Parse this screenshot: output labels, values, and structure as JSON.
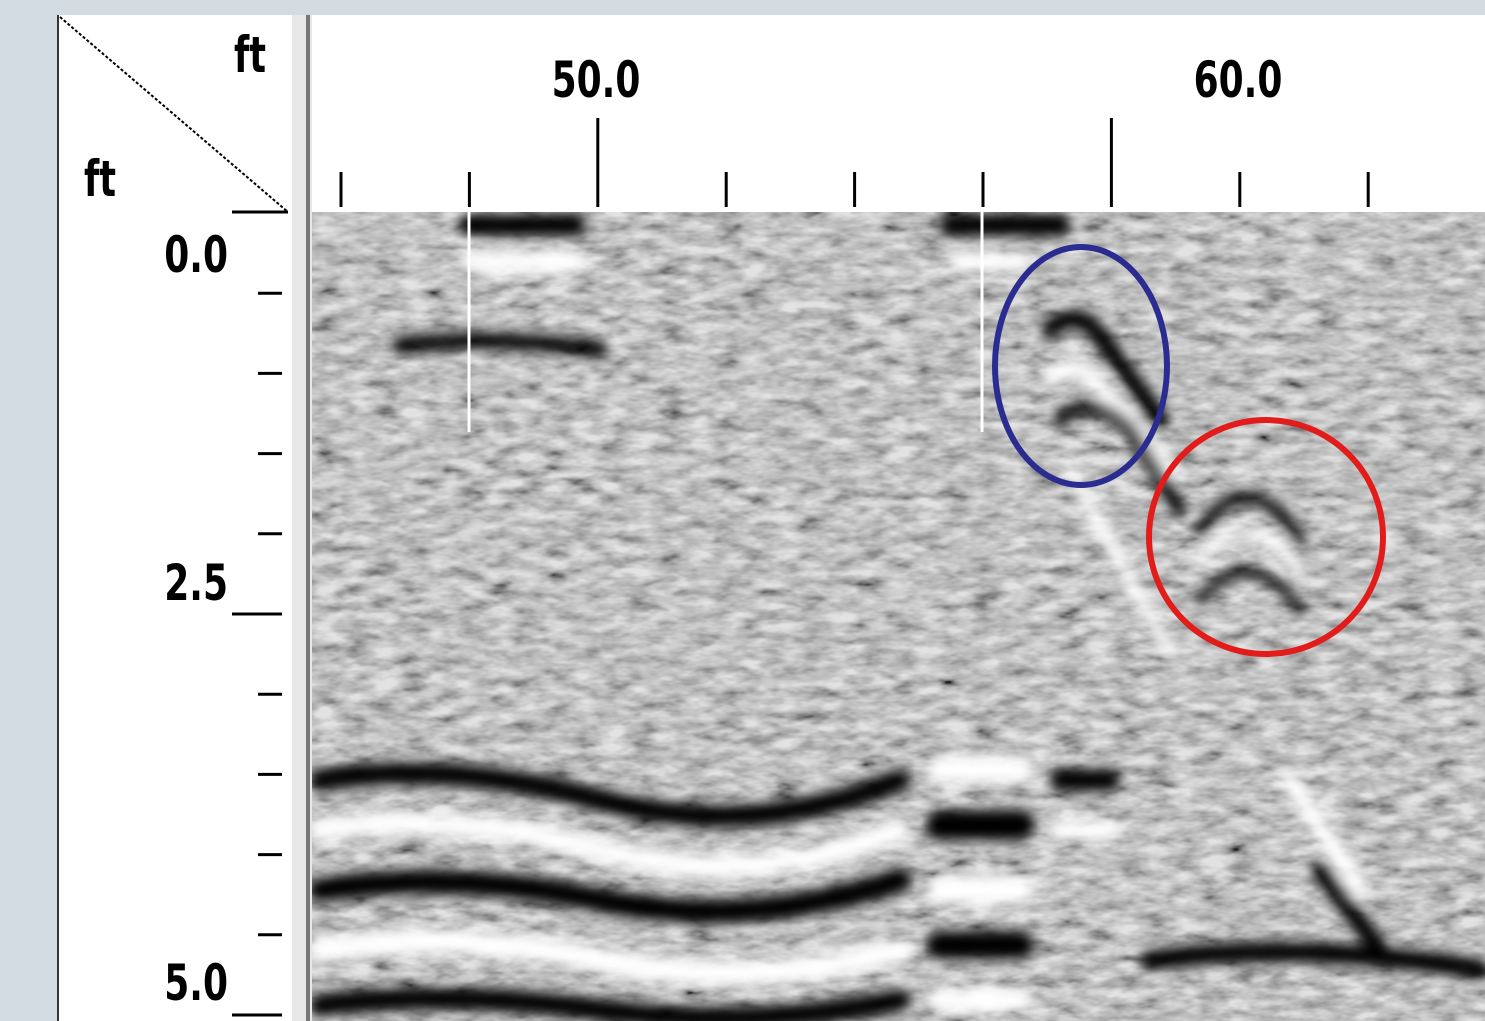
{
  "corner": {
    "x_unit": "ft",
    "y_unit": "ft"
  },
  "x_ruler": {
    "labels": [
      "50.0",
      "60.0"
    ]
  },
  "y_ruler": {
    "labels": [
      "0.0",
      "2.5",
      "5.0"
    ]
  }
}
